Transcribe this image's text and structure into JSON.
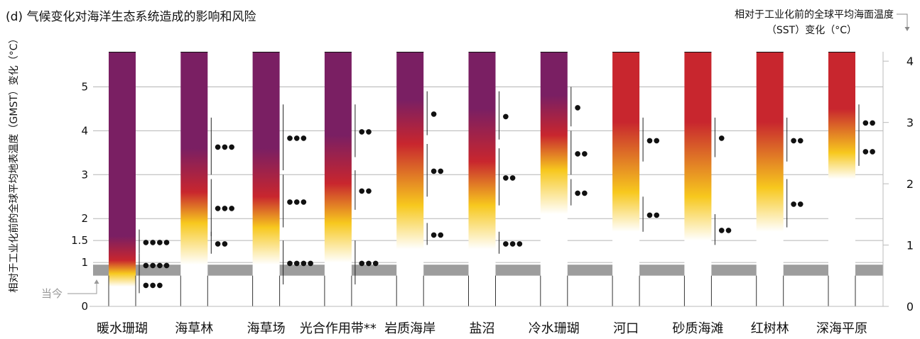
{
  "chart_data": {
    "type": "bar",
    "title": "(d) 气候变化对海洋生态系统造成的影响和风险",
    "ylabel": "相对于工业化前的全球平均地表温度（GMST）变化（°C）",
    "y2label_line1": "相对于工业化前的全球平均海面温度",
    "y2label_line2": "（SST）变化（°C）",
    "today_label": "当今",
    "ylim": [
      0,
      5.8
    ],
    "y_ticks": [
      0,
      1,
      1.5,
      2,
      3,
      4,
      5
    ],
    "y_tick_labels": [
      "0",
      "1",
      "1.5",
      "2",
      "3",
      "4",
      "5"
    ],
    "y2_ticks": [
      0,
      1,
      2,
      3,
      4
    ],
    "y2_tick_labels": [
      "0",
      "1",
      "2",
      "3",
      "4"
    ],
    "y2_per_y": 0.716,
    "present_band": [
      0.7,
      0.95
    ],
    "grid": true,
    "risk_colors": {
      "undetectable": "#ffffff",
      "moderate": "#f7c81e",
      "high": "#c8262e",
      "very_high": "#7a1f63"
    },
    "categories": [
      "暖水珊瑚",
      "海草林",
      "海草场",
      "光合作用带**",
      "岩质海岸",
      "盐沼",
      "冷水珊瑚",
      "河口",
      "砂质海滩",
      "红树林",
      "深海平原"
    ],
    "bars": [
      {
        "stops": [
          [
            0.45,
            "#ffffff"
          ],
          [
            0.75,
            "#f7c81e"
          ],
          [
            1.05,
            "#c8262e"
          ],
          [
            1.6,
            "#7a1f63"
          ]
        ],
        "confidence": [
          {
            "range": [
              0.3,
              0.7
            ],
            "dots": "●●●"
          },
          {
            "range": [
              0.7,
              1.2
            ],
            "dots": "●●●●"
          },
          {
            "range": [
              1.2,
              1.75
            ],
            "dots": "●●●●"
          }
        ]
      },
      {
        "stops": [
          [
            0.95,
            "#ffffff"
          ],
          [
            1.9,
            "#f7c81e"
          ],
          [
            2.6,
            "#c8262e"
          ],
          [
            3.6,
            "#7a1f63"
          ]
        ],
        "confidence": [
          {
            "range": [
              1.2,
              1.7
            ],
            "dots": "●●"
          },
          {
            "range": [
              1.6,
              2.9
            ],
            "dots": "●●●"
          },
          {
            "range": [
              3.0,
              4.3
            ],
            "dots": "●●●"
          }
        ]
      },
      {
        "stops": [
          [
            0.95,
            "#ffffff"
          ],
          [
            1.8,
            "#f7c81e"
          ],
          [
            2.5,
            "#c8262e"
          ],
          [
            3.6,
            "#7a1f63"
          ]
        ],
        "confidence": [
          {
            "range": [
              0.5,
              1.5
            ],
            "dots": "●●●●"
          },
          {
            "range": [
              1.8,
              3.0
            ],
            "dots": "●●●"
          },
          {
            "range": [
              3.1,
              4.6
            ],
            "dots": "●●●"
          }
        ]
      },
      {
        "stops": [
          [
            1.0,
            "#ffffff"
          ],
          [
            1.9,
            "#f7c81e"
          ],
          [
            2.8,
            "#c8262e"
          ],
          [
            3.9,
            "#7a1f63"
          ]
        ],
        "confidence": [
          {
            "range": [
              0.5,
              1.5
            ],
            "dots": "●●●"
          },
          {
            "range": [
              2.2,
              3.1
            ],
            "dots": "●●"
          },
          {
            "range": [
              3.4,
              4.6
            ],
            "dots": "●●"
          }
        ]
      },
      {
        "stops": [
          [
            1.3,
            "#ffffff"
          ],
          [
            2.3,
            "#f7c81e"
          ],
          [
            3.7,
            "#c8262e"
          ],
          [
            4.7,
            "#7a1f63"
          ]
        ],
        "confidence": [
          {
            "range": [
              1.4,
              1.9
            ],
            "dots": "●●"
          },
          {
            "range": [
              2.5,
              3.7
            ],
            "dots": "●●"
          },
          {
            "range": [
              3.9,
              4.9
            ],
            "dots": "●"
          }
        ]
      },
      {
        "stops": [
          [
            1.3,
            "#ffffff"
          ],
          [
            2.3,
            "#f7c81e"
          ],
          [
            3.3,
            "#c8262e"
          ],
          [
            4.5,
            "#7a1f63"
          ]
        ],
        "confidence": [
          {
            "range": [
              1.2,
              1.7
            ],
            "dots": "●●●"
          },
          {
            "range": [
              2.3,
              3.6
            ],
            "dots": "●●"
          },
          {
            "range": [
              3.8,
              4.9
            ],
            "dots": "●"
          }
        ]
      },
      {
        "stops": [
          [
            2.1,
            "#ffffff"
          ],
          [
            3.1,
            "#f7c81e"
          ],
          [
            3.9,
            "#c8262e"
          ],
          [
            4.8,
            "#7a1f63"
          ]
        ],
        "confidence": [
          {
            "range": [
              2.3,
              2.9
            ],
            "dots": "●●"
          },
          {
            "range": [
              3.0,
              4.0
            ],
            "dots": "●●"
          },
          {
            "range": [
              4.1,
              5.0
            ],
            "dots": "●"
          }
        ]
      },
      {
        "stops": [
          [
            1.7,
            "#ffffff"
          ],
          [
            2.6,
            "#f7c81e"
          ],
          [
            4.2,
            "#c8262e"
          ]
        ],
        "confidence": [
          {
            "range": [
              1.7,
              2.5
            ],
            "dots": "●●"
          },
          {
            "range": [
              3.3,
              4.3
            ],
            "dots": "●●"
          }
        ]
      },
      {
        "stops": [
          [
            1.5,
            "#ffffff"
          ],
          [
            2.5,
            "#f7c81e"
          ],
          [
            4.2,
            "#c8262e"
          ]
        ],
        "confidence": [
          {
            "range": [
              1.4,
              2.1
            ],
            "dots": "●●"
          },
          {
            "range": [
              3.4,
              4.3
            ],
            "dots": "●"
          }
        ]
      },
      {
        "stops": [
          [
            1.7,
            "#ffffff"
          ],
          [
            2.7,
            "#f7c81e"
          ],
          [
            4.2,
            "#c8262e"
          ]
        ],
        "confidence": [
          {
            "range": [
              1.8,
              2.9
            ],
            "dots": "●●"
          },
          {
            "range": [
              3.3,
              4.3
            ],
            "dots": "●●"
          }
        ]
      },
      {
        "stops": [
          [
            2.9,
            "#ffffff"
          ],
          [
            3.5,
            "#f7c81e"
          ],
          [
            4.5,
            "#c8262e"
          ]
        ],
        "confidence": [
          {
            "range": [
              3.2,
              3.9
            ],
            "dots": "●●"
          },
          {
            "range": [
              3.8,
              4.6
            ],
            "dots": "●●"
          }
        ]
      }
    ]
  }
}
